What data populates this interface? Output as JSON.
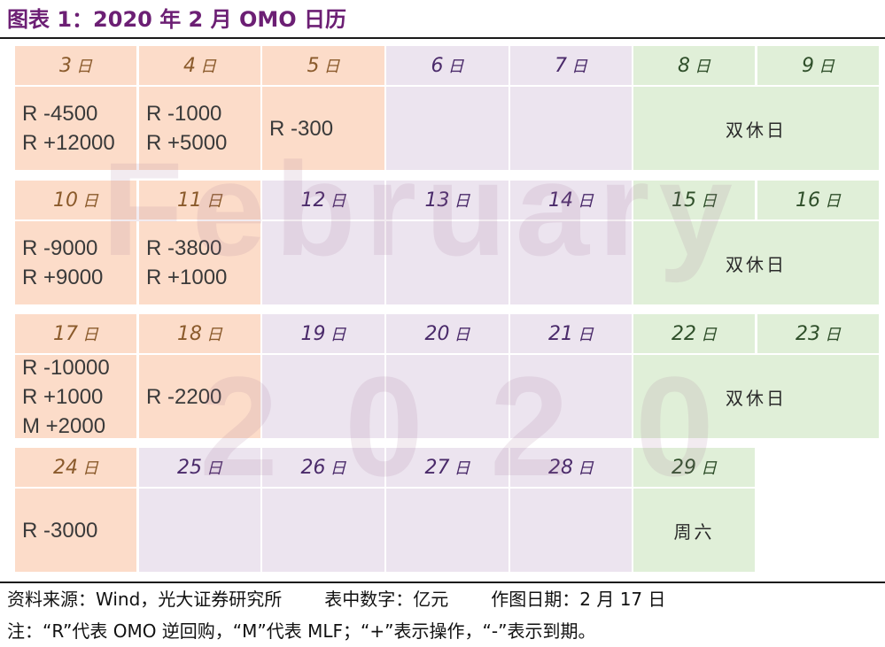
{
  "title": "图表 1：2020 年 2 月 OMO 日历",
  "watermark": {
    "month": "February",
    "year": "2020"
  },
  "day_suffix": "日",
  "weekend_label": "双休日",
  "weeks": [
    {
      "days": [
        {
          "day": "3",
          "ops": [
            "R -4500",
            "R +12000"
          ]
        },
        {
          "day": "4",
          "ops": [
            "R -1000",
            "R +5000"
          ]
        },
        {
          "day": "5",
          "ops": [
            "R -300"
          ]
        },
        {
          "day": "6",
          "ops": []
        },
        {
          "day": "7",
          "ops": []
        },
        {
          "day": "8"
        },
        {
          "day": "9"
        }
      ]
    },
    {
      "days": [
        {
          "day": "10",
          "ops": [
            "R -9000",
            "R +9000"
          ]
        },
        {
          "day": "11",
          "ops": [
            "R -3800",
            "R +1000"
          ]
        },
        {
          "day": "12",
          "ops": []
        },
        {
          "day": "13",
          "ops": []
        },
        {
          "day": "14",
          "ops": []
        },
        {
          "day": "15"
        },
        {
          "day": "16"
        }
      ]
    },
    {
      "days": [
        {
          "day": "17",
          "ops": [
            "R -10000",
            "R +1000",
            "M +2000"
          ]
        },
        {
          "day": "18",
          "ops": [
            "R -2200"
          ]
        },
        {
          "day": "19",
          "ops": []
        },
        {
          "day": "20",
          "ops": []
        },
        {
          "day": "21",
          "ops": []
        },
        {
          "day": "22"
        },
        {
          "day": "23"
        }
      ]
    },
    {
      "days": [
        {
          "day": "24",
          "ops": [
            "R -3000"
          ]
        },
        {
          "day": "25",
          "ops": []
        },
        {
          "day": "26",
          "ops": []
        },
        {
          "day": "27",
          "ops": []
        },
        {
          "day": "28",
          "ops": []
        },
        {
          "day": "29"
        }
      ],
      "saturday_label": "周六"
    }
  ],
  "colors": {
    "operation_day": "#fcdcc9",
    "no_operation_day": "#ece4ef",
    "weekend": "#e0efd8",
    "title": "#6c1f74"
  },
  "footer": {
    "source": "资料来源：Wind，光大证券研究所",
    "unit": "表中数字：亿元",
    "date": "作图日期：2 月 17 日",
    "note": "注：“R”代表 OMO 逆回购，“M”代表 MLF；“+”表示操作，“-”表示到期。"
  }
}
